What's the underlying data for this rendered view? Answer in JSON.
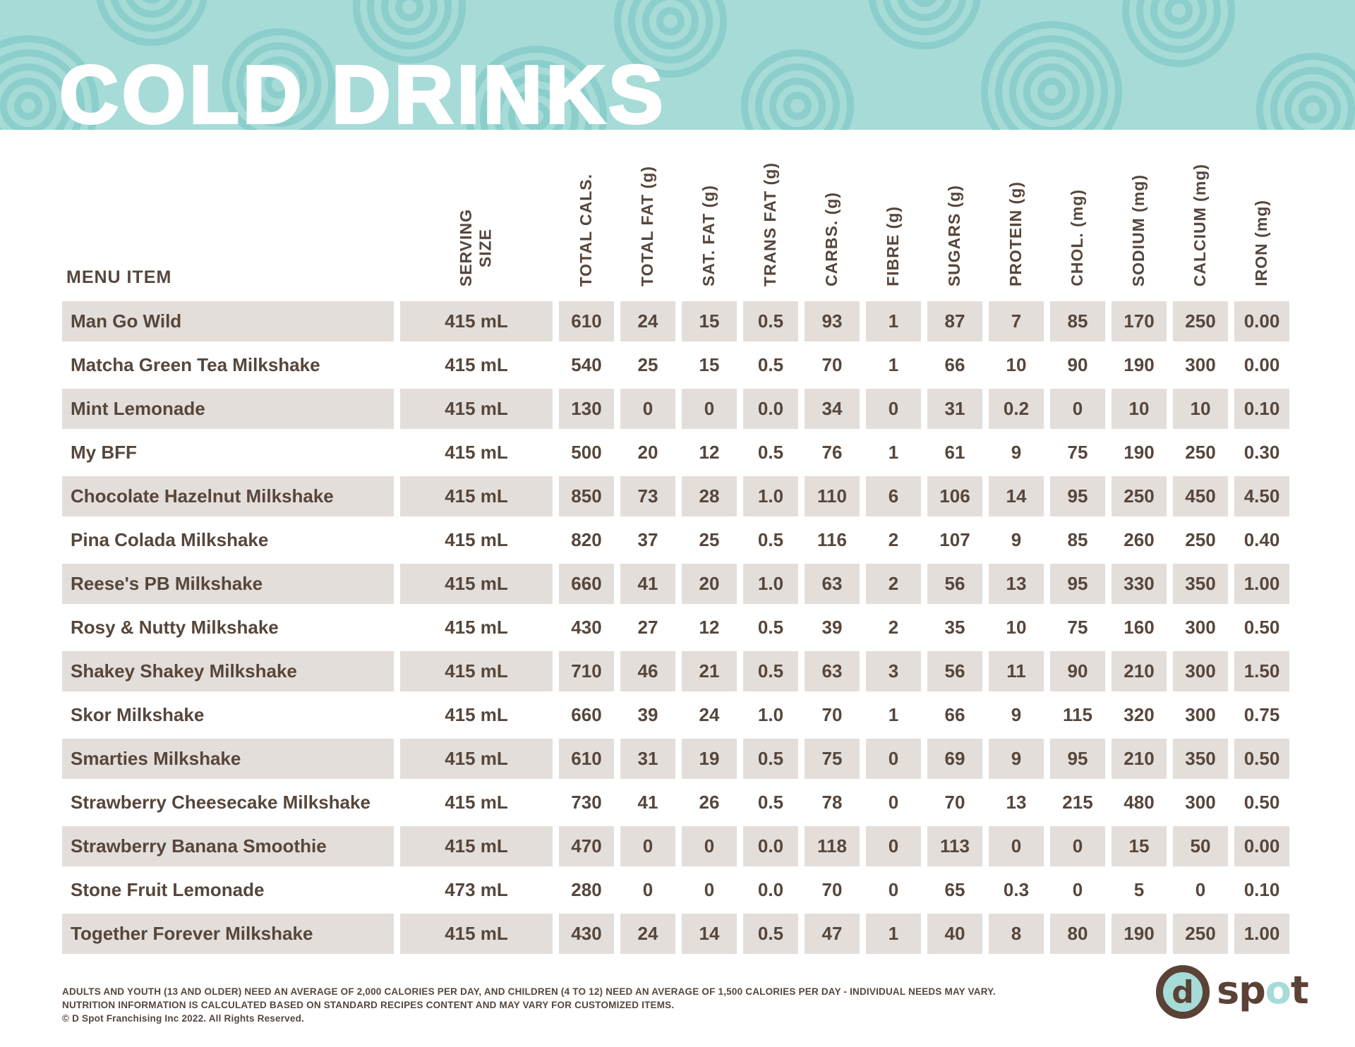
{
  "page": {
    "title": "COLD DRINKS"
  },
  "colors": {
    "banner_teal": "#a6dbd8",
    "banner_ring_teal": "#8bcecb",
    "text_brown": "#56463b",
    "row_shade": "#e3deda",
    "logo_brown": "#5b4136",
    "title_white": "#ffffff"
  },
  "table": {
    "menu_header": "MENU ITEM",
    "columns": [
      "SERVING\nSIZE",
      "TOTAL CALS.",
      "TOTAL FAT (g)",
      "SAT. FAT (g)",
      "TRANS FAT (g)",
      "CARBS. (g)",
      "FIBRE (g)",
      "SUGARS (g)",
      "PROTEIN (g)",
      "CHOL. (mg)",
      "SODIUM (mg)",
      "CALCIUM (mg)",
      "IRON (mg)"
    ],
    "rows": [
      {
        "name": "Man Go Wild",
        "values": [
          "415 mL",
          "610",
          "24",
          "15",
          "0.5",
          "93",
          "1",
          "87",
          "7",
          "85",
          "170",
          "250",
          "0.00"
        ]
      },
      {
        "name": "Matcha Green Tea Milkshake",
        "values": [
          "415 mL",
          "540",
          "25",
          "15",
          "0.5",
          "70",
          "1",
          "66",
          "10",
          "90",
          "190",
          "300",
          "0.00"
        ]
      },
      {
        "name": "Mint Lemonade",
        "values": [
          "415 mL",
          "130",
          "0",
          "0",
          "0.0",
          "34",
          "0",
          "31",
          "0.2",
          "0",
          "10",
          "10",
          "0.10"
        ]
      },
      {
        "name": "My BFF",
        "values": [
          "415 mL",
          "500",
          "20",
          "12",
          "0.5",
          "76",
          "1",
          "61",
          "9",
          "75",
          "190",
          "250",
          "0.30"
        ]
      },
      {
        "name": "Chocolate Hazelnut Milkshake",
        "values": [
          "415 mL",
          "850",
          "73",
          "28",
          "1.0",
          "110",
          "6",
          "106",
          "14",
          "95",
          "250",
          "450",
          "4.50"
        ]
      },
      {
        "name": "Pina Colada Milkshake",
        "values": [
          "415 mL",
          "820",
          "37",
          "25",
          "0.5",
          "116",
          "2",
          "107",
          "9",
          "85",
          "260",
          "250",
          "0.40"
        ]
      },
      {
        "name": "Reese's PB Milkshake",
        "values": [
          "415 mL",
          "660",
          "41",
          "20",
          "1.0",
          "63",
          "2",
          "56",
          "13",
          "95",
          "330",
          "350",
          "1.00"
        ]
      },
      {
        "name": "Rosy & Nutty Milkshake",
        "values": [
          "415 mL",
          "430",
          "27",
          "12",
          "0.5",
          "39",
          "2",
          "35",
          "10",
          "75",
          "160",
          "300",
          "0.50"
        ]
      },
      {
        "name": "Shakey Shakey Milkshake",
        "values": [
          "415 mL",
          "710",
          "46",
          "21",
          "0.5",
          "63",
          "3",
          "56",
          "11",
          "90",
          "210",
          "300",
          "1.50"
        ]
      },
      {
        "name": "Skor Milkshake",
        "values": [
          "415 mL",
          "660",
          "39",
          "24",
          "1.0",
          "70",
          "1",
          "66",
          "9",
          "115",
          "320",
          "300",
          "0.75"
        ]
      },
      {
        "name": "Smarties Milkshake",
        "values": [
          "415 mL",
          "610",
          "31",
          "19",
          "0.5",
          "75",
          "0",
          "69",
          "9",
          "95",
          "210",
          "350",
          "0.50"
        ]
      },
      {
        "name": "Strawberry Cheesecake Milkshake",
        "values": [
          "415 mL",
          "730",
          "41",
          "26",
          "0.5",
          "78",
          "0",
          "70",
          "13",
          "215",
          "480",
          "300",
          "0.50"
        ]
      },
      {
        "name": "Strawberry Banana Smoothie",
        "values": [
          "415 mL",
          "470",
          "0",
          "0",
          "0.0",
          "118",
          "0",
          "113",
          "0",
          "0",
          "15",
          "50",
          "0.00"
        ]
      },
      {
        "name": "Stone Fruit Lemonade",
        "values": [
          "473 mL",
          "280",
          "0",
          "0",
          "0.0",
          "70",
          "0",
          "65",
          "0.3",
          "0",
          "5",
          "0",
          "0.10"
        ]
      },
      {
        "name": "Together Forever Milkshake",
        "values": [
          "415 mL",
          "430",
          "24",
          "14",
          "0.5",
          "47",
          "1",
          "40",
          "8",
          "80",
          "190",
          "250",
          "1.00"
        ]
      }
    ]
  },
  "footer": {
    "line1": "ADULTS AND YOUTH (13 AND OLDER) NEED AN AVERAGE OF 2,000 CALORIES PER DAY, AND CHILDREN (4 TO 12) NEED AN AVERAGE OF 1,500 CALORIES PER DAY - INDIVIDUAL NEEDS MAY VARY.",
    "line2": "NUTRITION INFORMATION IS CALCULATED BASED ON STANDARD RECIPES CONTENT AND MAY VARY FOR CUSTOMIZED ITEMS.",
    "line3": "© D Spot Franchising Inc 2022. All Rights Reserved."
  },
  "logo": {
    "circle_letter": "d",
    "word_pre": "sp",
    "word_o": "o",
    "word_post": "t"
  }
}
